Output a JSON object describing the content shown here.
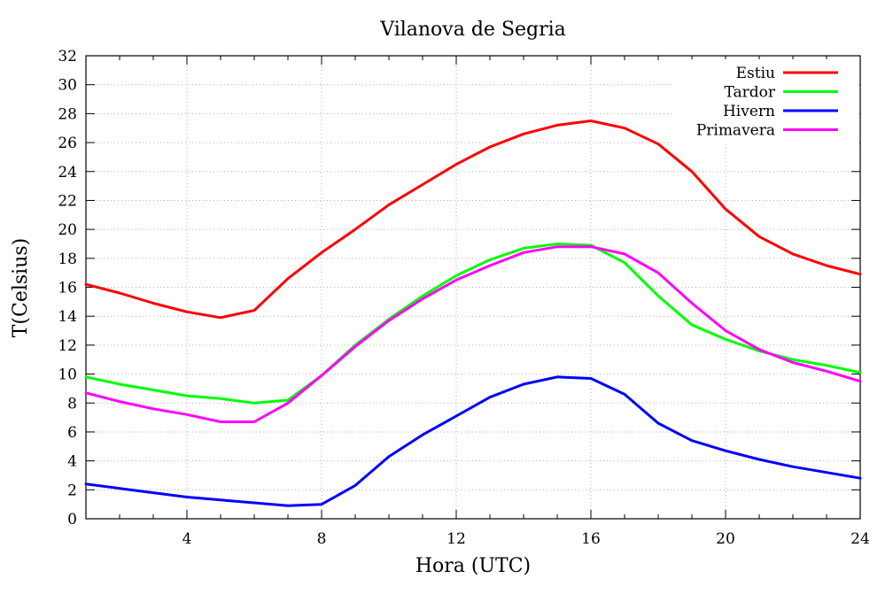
{
  "chart_data": {
    "type": "line",
    "title": "Vilanova de Segria",
    "xlabel": "Hora (UTC)",
    "ylabel": "T(Celsius)",
    "xlim": [
      1,
      24
    ],
    "ylim": [
      0,
      32
    ],
    "xticks": [
      4,
      8,
      12,
      16,
      20,
      24
    ],
    "yticks": [
      0,
      2,
      4,
      6,
      8,
      10,
      12,
      14,
      16,
      18,
      20,
      22,
      24,
      26,
      28,
      30,
      32
    ],
    "grid": true,
    "legend_position": "top-right",
    "x": [
      1,
      2,
      3,
      4,
      5,
      6,
      7,
      8,
      9,
      10,
      11,
      12,
      13,
      14,
      15,
      16,
      17,
      18,
      19,
      20,
      21,
      22,
      23,
      24
    ],
    "series": [
      {
        "name": "Estiu",
        "color": "#ff0000",
        "values": [
          16.2,
          15.6,
          14.9,
          14.3,
          13.9,
          14.4,
          16.6,
          18.4,
          20.0,
          21.7,
          23.1,
          24.5,
          25.7,
          26.6,
          27.2,
          27.5,
          27.0,
          25.9,
          24.0,
          21.4,
          19.5,
          18.3,
          17.5,
          16.9
        ]
      },
      {
        "name": "Tardor",
        "color": "#00ff00",
        "values": [
          9.8,
          9.3,
          8.9,
          8.5,
          8.3,
          8.0,
          8.2,
          9.9,
          12.0,
          13.8,
          15.4,
          16.8,
          17.9,
          18.7,
          19.0,
          18.9,
          17.7,
          15.4,
          13.4,
          12.4,
          11.6,
          11.0,
          10.6,
          10.1
        ]
      },
      {
        "name": "Hivern",
        "color": "#0000ff",
        "values": [
          2.4,
          2.1,
          1.8,
          1.5,
          1.3,
          1.1,
          0.9,
          1.0,
          2.3,
          4.3,
          5.8,
          7.1,
          8.4,
          9.3,
          9.8,
          9.7,
          8.6,
          6.6,
          5.4,
          4.7,
          4.1,
          3.6,
          3.2,
          2.8
        ]
      },
      {
        "name": "Primavera",
        "color": "#ff00ff",
        "values": [
          8.7,
          8.1,
          7.6,
          7.2,
          6.7,
          6.7,
          8.0,
          9.9,
          11.9,
          13.7,
          15.2,
          16.5,
          17.5,
          18.4,
          18.8,
          18.8,
          18.3,
          17.0,
          14.9,
          13.0,
          11.7,
          10.8,
          10.2,
          9.5
        ]
      }
    ]
  }
}
